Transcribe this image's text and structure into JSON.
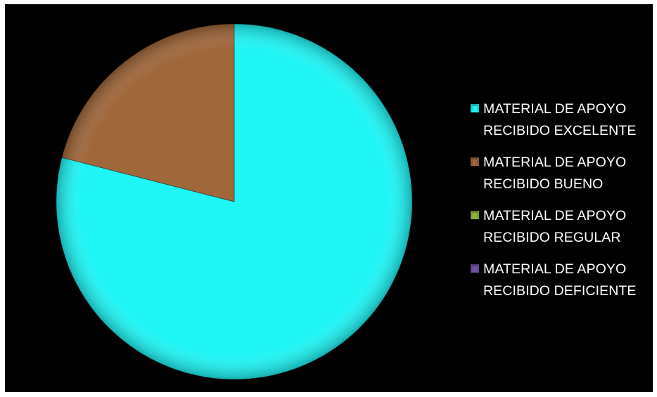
{
  "chart_data": {
    "type": "pie",
    "title": "",
    "slices": [
      {
        "label": "MATERIAL DE APOYO RECIBIDO EXCELENTE",
        "value": 79,
        "color": "#1ff5f5"
      },
      {
        "label": "MATERIAL DE APOYO RECIBIDO BUENO",
        "value": 21,
        "color": "#a0673b"
      },
      {
        "label": "MATERIAL DE APOYO RECIBIDO REGULAR",
        "value": 0,
        "color": "#8fb43e"
      },
      {
        "label": "MATERIAL DE APOYO RECIBIDO DEFICIENTE",
        "value": 0,
        "color": "#7153a0"
      }
    ],
    "legend_position": "right",
    "background": "#000000",
    "grid": false
  },
  "legend": {
    "items": [
      {
        "line1": "MATERIAL DE APOYO",
        "line2": "RECIBIDO EXCELENTE",
        "color": "#1ff5f5"
      },
      {
        "line1": "MATERIAL DE APOYO",
        "line2": "RECIBIDO BUENO",
        "color": "#a0673b"
      },
      {
        "line1": "MATERIAL DE APOYO",
        "line2": "RECIBIDO REGULAR",
        "color": "#8fb43e"
      },
      {
        "line1": "MATERIAL DE APOYO",
        "line2": "RECIBIDO DEFICIENTE",
        "color": "#7153a0"
      }
    ]
  }
}
